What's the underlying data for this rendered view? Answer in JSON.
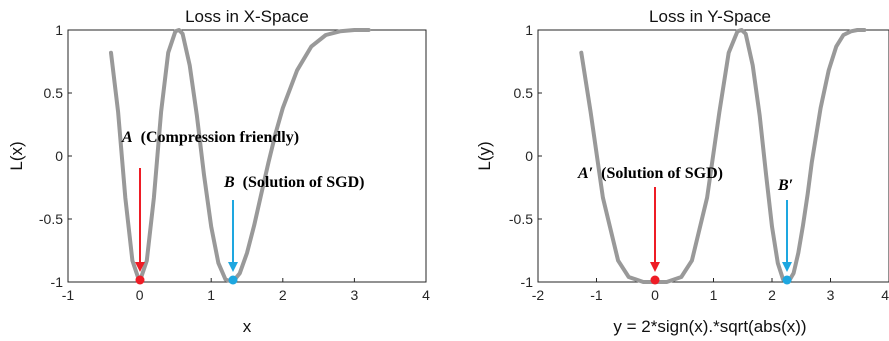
{
  "chart_data": [
    {
      "type": "line",
      "title": "Loss in X-Space",
      "xlabel": "x",
      "ylabel": "L(x)",
      "xlim": [
        -1,
        4
      ],
      "ylim": [
        -1,
        1
      ],
      "xticks": [
        "-1",
        "0",
        "1",
        "2",
        "3",
        "4"
      ],
      "yticks": [
        "-1",
        "-0.5",
        "0",
        "0.5",
        "1"
      ],
      "grid": false,
      "series": [
        {
          "color": "#999999",
          "x": [
            -0.4,
            -0.3,
            -0.2,
            -0.1,
            0.0,
            0.1,
            0.2,
            0.3,
            0.4,
            0.5,
            0.55,
            0.6,
            0.7,
            0.8,
            0.9,
            1.0,
            1.1,
            1.2,
            1.3,
            1.4,
            1.5,
            1.6,
            1.7,
            1.8,
            1.9,
            2.0,
            2.2,
            2.4,
            2.6,
            2.8,
            3.0,
            3.2
          ],
          "y": [
            0.82,
            0.35,
            -0.33,
            -0.83,
            -1.0,
            -0.83,
            -0.33,
            0.35,
            0.82,
            0.99,
            1.0,
            0.97,
            0.72,
            0.32,
            -0.15,
            -0.56,
            -0.85,
            -0.98,
            -1.0,
            -0.93,
            -0.77,
            -0.55,
            -0.3,
            -0.05,
            0.18,
            0.38,
            0.68,
            0.87,
            0.96,
            0.99,
            1.0,
            1.0
          ]
        }
      ],
      "points": [
        {
          "name": "A",
          "x": 0.0,
          "y": -1.0,
          "color": "#ee1c25"
        },
        {
          "name": "B",
          "x": 1.3,
          "y": -1.0,
          "color": "#1ea7e0"
        }
      ],
      "annotations": [
        {
          "text": "(Compression friendly)",
          "var": "A",
          "color": "#000000",
          "arrow_color": "#ee1c25"
        },
        {
          "text": "(Solution of SGD)",
          "var": "B",
          "color": "#000000",
          "arrow_color": "#1ea7e0"
        }
      ]
    },
    {
      "type": "line",
      "title": "Loss in Y-Space",
      "xlabel": "y = 2*sign(x).*sqrt(abs(x))",
      "ylabel": "L(y)",
      "xlim": [
        -2,
        4
      ],
      "ylim": [
        -1,
        1
      ],
      "xticks": [
        "-2",
        "-1",
        "0",
        "1",
        "2",
        "3",
        "4"
      ],
      "yticks": [
        "-1",
        "-0.5",
        "0",
        "0.5",
        "1"
      ],
      "grid": false,
      "series": [
        {
          "color": "#999999",
          "x": [
            -1.26,
            -1.1,
            -0.89,
            -0.63,
            -0.45,
            -0.2,
            0.0,
            0.2,
            0.45,
            0.63,
            0.89,
            1.1,
            1.26,
            1.41,
            1.48,
            1.55,
            1.67,
            1.79,
            1.9,
            2.0,
            2.1,
            2.19,
            2.28,
            2.37,
            2.45,
            2.53,
            2.61,
            2.68,
            2.76,
            2.83,
            2.97,
            3.1,
            3.22,
            3.35,
            3.46,
            3.58
          ],
          "y": [
            0.82,
            0.35,
            -0.33,
            -0.83,
            -0.96,
            -1.0,
            -1.0,
            -1.0,
            -0.96,
            -0.83,
            -0.33,
            0.35,
            0.82,
            0.99,
            1.0,
            0.97,
            0.72,
            0.32,
            -0.15,
            -0.56,
            -0.85,
            -0.98,
            -1.0,
            -0.93,
            -0.77,
            -0.55,
            -0.3,
            -0.05,
            0.18,
            0.38,
            0.68,
            0.87,
            0.96,
            0.99,
            1.0,
            1.0
          ]
        }
      ],
      "points": [
        {
          "name": "A'",
          "x": 0.0,
          "y": -1.0,
          "color": "#ee1c25"
        },
        {
          "name": "B'",
          "x": 2.28,
          "y": -1.0,
          "color": "#1ea7e0"
        }
      ],
      "annotations": [
        {
          "text": "(Solution of SGD)",
          "var": "A′",
          "color": "#000000",
          "arrow_color": "#ee1c25"
        },
        {
          "text": "",
          "var": "B′",
          "color": "#000000",
          "arrow_color": "#1ea7e0"
        }
      ]
    }
  ]
}
